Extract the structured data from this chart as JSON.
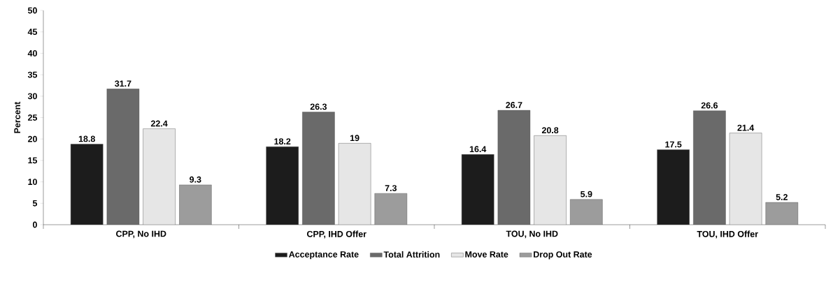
{
  "chart_data": {
    "type": "bar",
    "ylabel": "Percent",
    "categories": [
      "CPP, No IHD",
      "CPP, IHD Offer",
      "TOU, No IHD",
      "TOU, IHD Offer"
    ],
    "series": [
      {
        "name": "Acceptance Rate",
        "color": "#1c1c1c",
        "values": [
          18.8,
          18.2,
          16.4,
          17.5
        ]
      },
      {
        "name": "Total Attrition",
        "color": "#6a6a6a",
        "values": [
          31.7,
          26.3,
          26.7,
          26.6
        ]
      },
      {
        "name": "Move Rate",
        "color": "#e6e6e6",
        "values": [
          22.4,
          19,
          20.8,
          21.4
        ]
      },
      {
        "name": "Drop Out Rate",
        "color": "#9c9c9c",
        "values": [
          9.3,
          7.3,
          5.9,
          5.2
        ]
      }
    ],
    "ylim": [
      0,
      50
    ],
    "yticks": [
      0,
      5,
      10,
      15,
      20,
      25,
      30,
      35,
      40,
      45,
      50
    ],
    "data_labels": true,
    "legend": "bottom",
    "grid": false
  }
}
